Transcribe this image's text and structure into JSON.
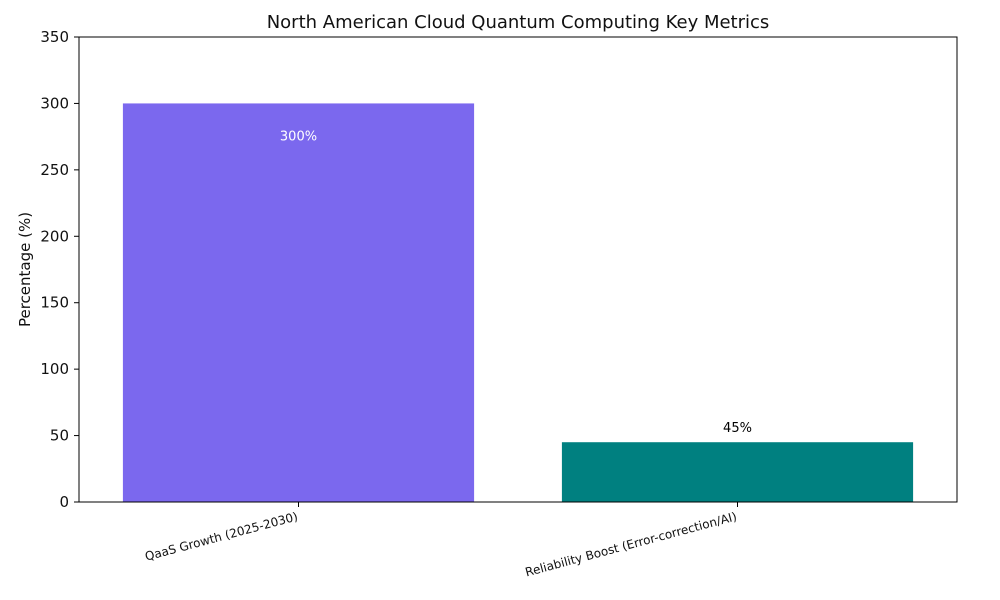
{
  "chart_data": {
    "type": "bar",
    "title": "North American Cloud Quantum Computing Key Metrics",
    "xlabel": "",
    "ylabel": "Percentage (%)",
    "ylim": [
      0,
      350
    ],
    "yticks": [
      0,
      50,
      100,
      150,
      200,
      250,
      300,
      350
    ],
    "categories": [
      "QaaS Growth (2025-2030)",
      "Reliability Boost (Error-correction/AI)"
    ],
    "values": [
      300,
      45
    ],
    "value_labels": [
      "300%",
      "45%"
    ],
    "colors": [
      "#7B68EE",
      "#008080"
    ],
    "value_label_colors": [
      "#ffffff",
      "#000000"
    ],
    "grid": false,
    "legend": "none"
  }
}
